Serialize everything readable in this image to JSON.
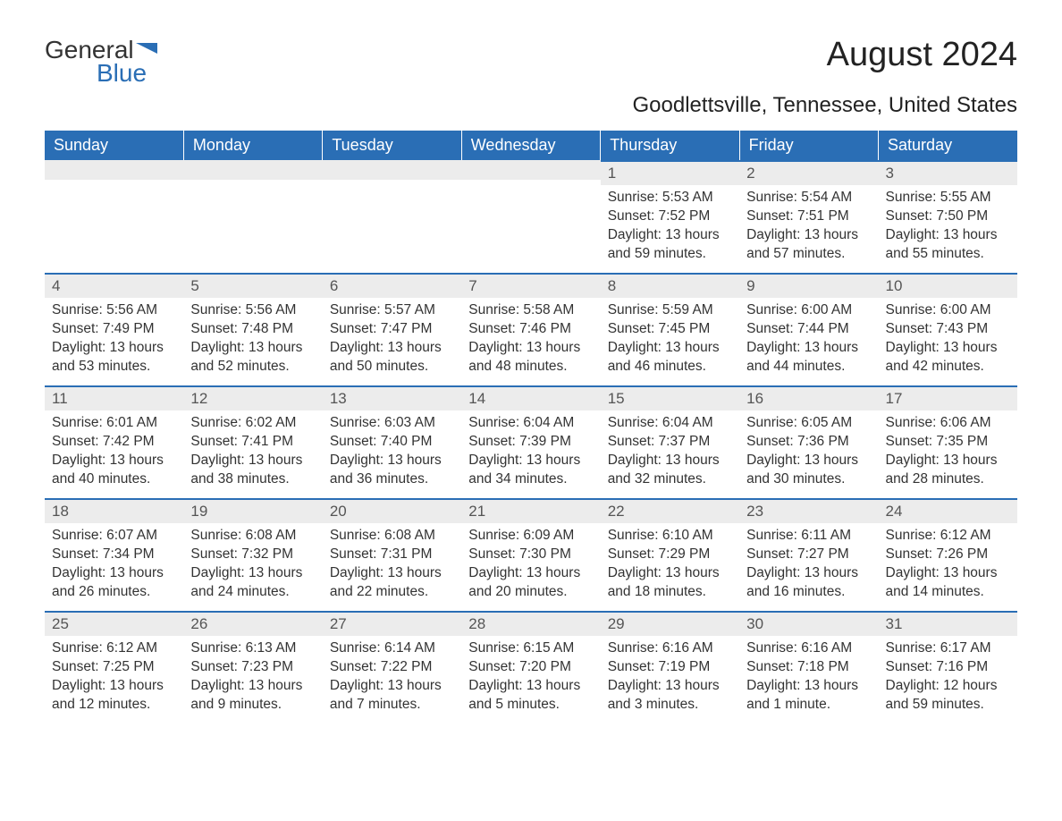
{
  "brand": {
    "text1": "General",
    "text2": "Blue",
    "flag_color": "#2a6eb5",
    "text_color": "#333333"
  },
  "title": "August 2024",
  "location": "Goodlettsville, Tennessee, United States",
  "colors": {
    "header_bg": "#2a6eb5",
    "header_text": "#ffffff",
    "daynum_bg": "#ececec",
    "daynum_border": "#2a6eb5",
    "body_text": "#333333",
    "page_bg": "#ffffff"
  },
  "day_headers": [
    "Sunday",
    "Monday",
    "Tuesday",
    "Wednesday",
    "Thursday",
    "Friday",
    "Saturday"
  ],
  "weeks": [
    [
      null,
      null,
      null,
      null,
      {
        "n": "1",
        "sr": "Sunrise: 5:53 AM",
        "ss": "Sunset: 7:52 PM",
        "dl": "Daylight: 13 hours and 59 minutes."
      },
      {
        "n": "2",
        "sr": "Sunrise: 5:54 AM",
        "ss": "Sunset: 7:51 PM",
        "dl": "Daylight: 13 hours and 57 minutes."
      },
      {
        "n": "3",
        "sr": "Sunrise: 5:55 AM",
        "ss": "Sunset: 7:50 PM",
        "dl": "Daylight: 13 hours and 55 minutes."
      }
    ],
    [
      {
        "n": "4",
        "sr": "Sunrise: 5:56 AM",
        "ss": "Sunset: 7:49 PM",
        "dl": "Daylight: 13 hours and 53 minutes."
      },
      {
        "n": "5",
        "sr": "Sunrise: 5:56 AM",
        "ss": "Sunset: 7:48 PM",
        "dl": "Daylight: 13 hours and 52 minutes."
      },
      {
        "n": "6",
        "sr": "Sunrise: 5:57 AM",
        "ss": "Sunset: 7:47 PM",
        "dl": "Daylight: 13 hours and 50 minutes."
      },
      {
        "n": "7",
        "sr": "Sunrise: 5:58 AM",
        "ss": "Sunset: 7:46 PM",
        "dl": "Daylight: 13 hours and 48 minutes."
      },
      {
        "n": "8",
        "sr": "Sunrise: 5:59 AM",
        "ss": "Sunset: 7:45 PM",
        "dl": "Daylight: 13 hours and 46 minutes."
      },
      {
        "n": "9",
        "sr": "Sunrise: 6:00 AM",
        "ss": "Sunset: 7:44 PM",
        "dl": "Daylight: 13 hours and 44 minutes."
      },
      {
        "n": "10",
        "sr": "Sunrise: 6:00 AM",
        "ss": "Sunset: 7:43 PM",
        "dl": "Daylight: 13 hours and 42 minutes."
      }
    ],
    [
      {
        "n": "11",
        "sr": "Sunrise: 6:01 AM",
        "ss": "Sunset: 7:42 PM",
        "dl": "Daylight: 13 hours and 40 minutes."
      },
      {
        "n": "12",
        "sr": "Sunrise: 6:02 AM",
        "ss": "Sunset: 7:41 PM",
        "dl": "Daylight: 13 hours and 38 minutes."
      },
      {
        "n": "13",
        "sr": "Sunrise: 6:03 AM",
        "ss": "Sunset: 7:40 PM",
        "dl": "Daylight: 13 hours and 36 minutes."
      },
      {
        "n": "14",
        "sr": "Sunrise: 6:04 AM",
        "ss": "Sunset: 7:39 PM",
        "dl": "Daylight: 13 hours and 34 minutes."
      },
      {
        "n": "15",
        "sr": "Sunrise: 6:04 AM",
        "ss": "Sunset: 7:37 PM",
        "dl": "Daylight: 13 hours and 32 minutes."
      },
      {
        "n": "16",
        "sr": "Sunrise: 6:05 AM",
        "ss": "Sunset: 7:36 PM",
        "dl": "Daylight: 13 hours and 30 minutes."
      },
      {
        "n": "17",
        "sr": "Sunrise: 6:06 AM",
        "ss": "Sunset: 7:35 PM",
        "dl": "Daylight: 13 hours and 28 minutes."
      }
    ],
    [
      {
        "n": "18",
        "sr": "Sunrise: 6:07 AM",
        "ss": "Sunset: 7:34 PM",
        "dl": "Daylight: 13 hours and 26 minutes."
      },
      {
        "n": "19",
        "sr": "Sunrise: 6:08 AM",
        "ss": "Sunset: 7:32 PM",
        "dl": "Daylight: 13 hours and 24 minutes."
      },
      {
        "n": "20",
        "sr": "Sunrise: 6:08 AM",
        "ss": "Sunset: 7:31 PM",
        "dl": "Daylight: 13 hours and 22 minutes."
      },
      {
        "n": "21",
        "sr": "Sunrise: 6:09 AM",
        "ss": "Sunset: 7:30 PM",
        "dl": "Daylight: 13 hours and 20 minutes."
      },
      {
        "n": "22",
        "sr": "Sunrise: 6:10 AM",
        "ss": "Sunset: 7:29 PM",
        "dl": "Daylight: 13 hours and 18 minutes."
      },
      {
        "n": "23",
        "sr": "Sunrise: 6:11 AM",
        "ss": "Sunset: 7:27 PM",
        "dl": "Daylight: 13 hours and 16 minutes."
      },
      {
        "n": "24",
        "sr": "Sunrise: 6:12 AM",
        "ss": "Sunset: 7:26 PM",
        "dl": "Daylight: 13 hours and 14 minutes."
      }
    ],
    [
      {
        "n": "25",
        "sr": "Sunrise: 6:12 AM",
        "ss": "Sunset: 7:25 PM",
        "dl": "Daylight: 13 hours and 12 minutes."
      },
      {
        "n": "26",
        "sr": "Sunrise: 6:13 AM",
        "ss": "Sunset: 7:23 PM",
        "dl": "Daylight: 13 hours and 9 minutes."
      },
      {
        "n": "27",
        "sr": "Sunrise: 6:14 AM",
        "ss": "Sunset: 7:22 PM",
        "dl": "Daylight: 13 hours and 7 minutes."
      },
      {
        "n": "28",
        "sr": "Sunrise: 6:15 AM",
        "ss": "Sunset: 7:20 PM",
        "dl": "Daylight: 13 hours and 5 minutes."
      },
      {
        "n": "29",
        "sr": "Sunrise: 6:16 AM",
        "ss": "Sunset: 7:19 PM",
        "dl": "Daylight: 13 hours and 3 minutes."
      },
      {
        "n": "30",
        "sr": "Sunrise: 6:16 AM",
        "ss": "Sunset: 7:18 PM",
        "dl": "Daylight: 13 hours and 1 minute."
      },
      {
        "n": "31",
        "sr": "Sunrise: 6:17 AM",
        "ss": "Sunset: 7:16 PM",
        "dl": "Daylight: 12 hours and 59 minutes."
      }
    ]
  ]
}
